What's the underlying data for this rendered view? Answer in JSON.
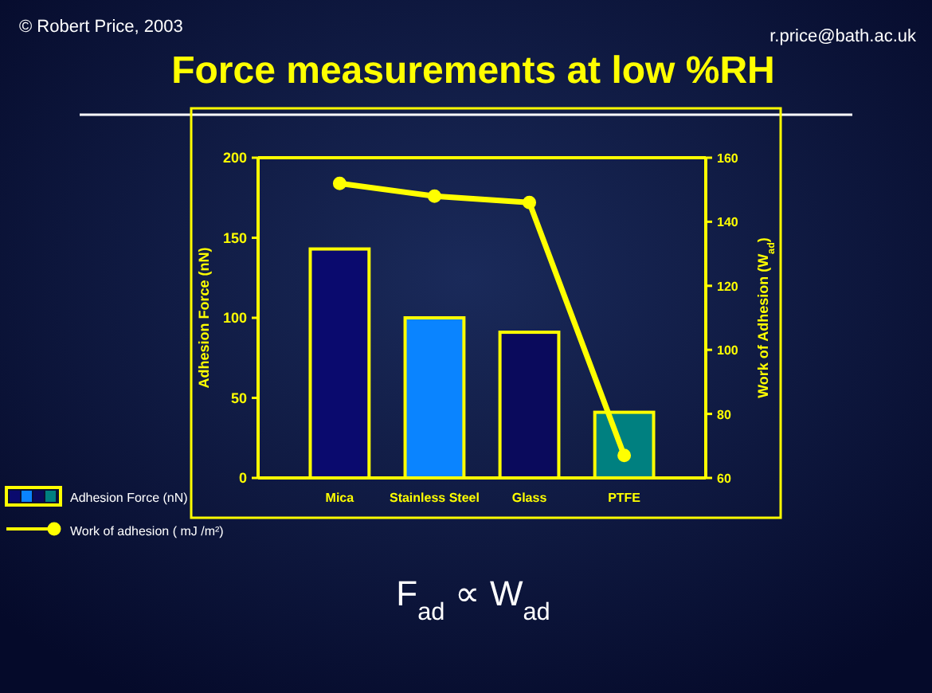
{
  "chart_data": {
    "type": "bar",
    "title": "Force measurements at low %RH",
    "ylabel": "Adhesion Force (nN)",
    "y2label": "Work of Adhesion (W$_{ad}$)",
    "categories": [
      "Mica",
      "Stainless Steel",
      "Glass",
      "PTFE"
    ],
    "series": [
      {
        "name": "Adhesion Force (nN)",
        "colors": [
          "#0a0a6e",
          "#0a84ff",
          "#0a0a5c",
          "#008080"
        ],
        "values": [
          143,
          100,
          91,
          41
        ]
      },
      {
        "name": "Work of adhesion ( mJ /m²)",
        "type": "line",
        "axis": "y2",
        "color": "#ffff00",
        "values": [
          152,
          148,
          146,
          67
        ],
        "marker": "circle",
        "line_style": "solid"
      }
    ],
    "ylim": [
      0,
      200
    ],
    "yticks": [
      0,
      50,
      100,
      150,
      200
    ],
    "y2lim": [
      60,
      160
    ],
    "y2ticks": [
      60,
      80,
      100,
      120,
      140,
      160
    ],
    "grid": false,
    "legend": "bottom left",
    "annotations": [
      "© Robert Price, 2003",
      "r.price@bath.ac.uk",
      "F$_{ad}$ ∝ W$_{ad}$"
    ]
  }
}
